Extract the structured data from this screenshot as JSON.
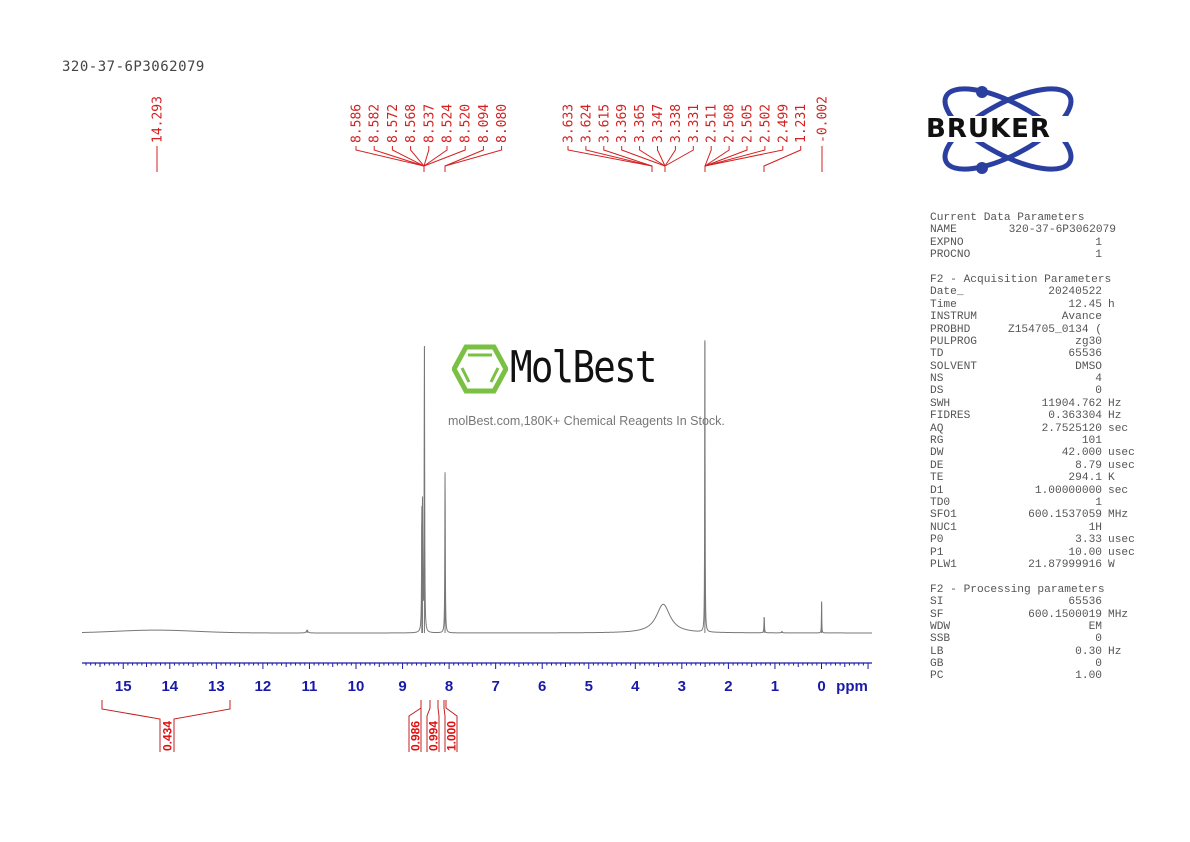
{
  "header": {
    "sample_name": "320-37-6P3062079"
  },
  "watermark": {
    "brand": "MolBest",
    "tagline": "molBest.com,180K+ Chemical Reagents In Stock.",
    "brand_color": "#7ac143"
  },
  "logo": {
    "text": "BRUKER",
    "orbit_color": "#2b3fa0"
  },
  "colors": {
    "peak_labels": "#d42020",
    "axis": "#1a1aa8",
    "spectrum": "#777777",
    "integrals": "#c22020"
  },
  "peak_labels": {
    "group1": [
      "14.293"
    ],
    "group2": [
      "8.586",
      "8.582",
      "8.572",
      "8.568",
      "8.537",
      "8.524",
      "8.520",
      "8.094",
      "8.080"
    ],
    "group3": [
      "3.633",
      "3.624",
      "3.615",
      "3.369",
      "3.365",
      "3.347",
      "3.338",
      "3.331",
      "2.511",
      "2.508",
      "2.505",
      "2.502",
      "2.499",
      "1.231",
      "-0.002"
    ]
  },
  "axis": {
    "ticks": [
      "15",
      "14",
      "13",
      "12",
      "11",
      "10",
      "9",
      "8",
      "7",
      "6",
      "5",
      "4",
      "3",
      "2",
      "1",
      "0"
    ],
    "unit": "ppm"
  },
  "integrals": [
    {
      "range": [
        15.5,
        12.8
      ],
      "value": "0.434"
    },
    {
      "range": [
        8.6,
        8.55
      ],
      "value": "0.986"
    },
    {
      "range": [
        8.54,
        8.5
      ],
      "value": "0.994"
    },
    {
      "range": [
        8.1,
        8.07
      ],
      "value": "1.000"
    }
  ],
  "parameters": {
    "current": {
      "heading": "Current Data Parameters",
      "rows": [
        {
          "key": "NAME",
          "value": "320-37-6P3062079",
          "unit": ""
        },
        {
          "key": "EXPNO",
          "value": "1",
          "unit": ""
        },
        {
          "key": "PROCNO",
          "value": "1",
          "unit": ""
        }
      ]
    },
    "acquisition": {
      "heading": "F2 - Acquisition Parameters",
      "rows": [
        {
          "key": "Date_",
          "value": "20240522",
          "unit": ""
        },
        {
          "key": "Time",
          "value": "12.45",
          "unit": "h"
        },
        {
          "key": "INSTRUM",
          "value": "Avance",
          "unit": ""
        },
        {
          "key": "PROBHD",
          "value": "Z154705_0134 (",
          "unit": ""
        },
        {
          "key": "PULPROG",
          "value": "zg30",
          "unit": ""
        },
        {
          "key": "TD",
          "value": "65536",
          "unit": ""
        },
        {
          "key": "SOLVENT",
          "value": "DMSO",
          "unit": ""
        },
        {
          "key": "NS",
          "value": "4",
          "unit": ""
        },
        {
          "key": "DS",
          "value": "0",
          "unit": ""
        },
        {
          "key": "SWH",
          "value": "11904.762",
          "unit": "Hz"
        },
        {
          "key": "FIDRES",
          "value": "0.363304",
          "unit": "Hz"
        },
        {
          "key": "AQ",
          "value": "2.7525120",
          "unit": "sec"
        },
        {
          "key": "RG",
          "value": "101",
          "unit": ""
        },
        {
          "key": "DW",
          "value": "42.000",
          "unit": "usec"
        },
        {
          "key": "DE",
          "value": "8.79",
          "unit": "usec"
        },
        {
          "key": "TE",
          "value": "294.1",
          "unit": "K"
        },
        {
          "key": "D1",
          "value": "1.00000000",
          "unit": "sec"
        },
        {
          "key": "TD0",
          "value": "1",
          "unit": ""
        },
        {
          "key": "SFO1",
          "value": "600.1537059",
          "unit": "MHz"
        },
        {
          "key": "NUC1",
          "value": "1H",
          "unit": ""
        },
        {
          "key": "P0",
          "value": "3.33",
          "unit": "usec"
        },
        {
          "key": "P1",
          "value": "10.00",
          "unit": "usec"
        },
        {
          "key": "PLW1",
          "value": "21.87999916",
          "unit": "W"
        }
      ]
    },
    "processing": {
      "heading": "F2 - Processing parameters",
      "rows": [
        {
          "key": "SI",
          "value": "65536",
          "unit": ""
        },
        {
          "key": "SF",
          "value": "600.1500019",
          "unit": "MHz"
        },
        {
          "key": "WDW",
          "value": "EM",
          "unit": ""
        },
        {
          "key": "SSB",
          "value": "0",
          "unit": ""
        },
        {
          "key": "LB",
          "value": "0.30",
          "unit": "Hz"
        },
        {
          "key": "GB",
          "value": "0",
          "unit": ""
        },
        {
          "key": "PC",
          "value": "1.00",
          "unit": ""
        }
      ]
    }
  },
  "chart_data": {
    "type": "line",
    "title": "320-37-6P3062079",
    "xlabel": "ppm",
    "ylabel": "",
    "xlim": [
      16.0,
      -1.0
    ],
    "x_reversed": true,
    "grid": false,
    "x_ticks": [
      15,
      14,
      13,
      12,
      11,
      10,
      9,
      8,
      7,
      6,
      5,
      4,
      3,
      2,
      1,
      0
    ],
    "peaks": [
      {
        "ppm": 14.293,
        "height": 0.01,
        "width": 1.2,
        "note": "very broad hump"
      },
      {
        "ppm": 11.05,
        "height": 0.01,
        "width": 0.02
      },
      {
        "ppm": 8.586,
        "height": 0.38,
        "width": 0.006
      },
      {
        "ppm": 8.572,
        "height": 0.4,
        "width": 0.006
      },
      {
        "ppm": 8.53,
        "height": 1.0,
        "width": 0.006
      },
      {
        "ppm": 8.087,
        "height": 0.56,
        "width": 0.006
      },
      {
        "ppm": 3.4,
        "height": 0.1,
        "width": 0.18,
        "note": "H2O broad"
      },
      {
        "ppm": 2.505,
        "height": 1.02,
        "width": 0.005,
        "note": "DMSO"
      },
      {
        "ppm": 1.231,
        "height": 0.055,
        "width": 0.006
      },
      {
        "ppm": 0.85,
        "height": 0.005,
        "width": 0.01
      },
      {
        "ppm": -0.002,
        "height": 0.11,
        "width": 0.004,
        "note": "TMS"
      }
    ],
    "integrals": [
      {
        "from": 15.5,
        "to": 12.8,
        "value": 0.434
      },
      {
        "from": 8.6,
        "to": 8.55,
        "value": 0.986
      },
      {
        "from": 8.54,
        "to": 8.5,
        "value": 0.994
      },
      {
        "from": 8.1,
        "to": 8.07,
        "value": 1.0
      }
    ]
  }
}
